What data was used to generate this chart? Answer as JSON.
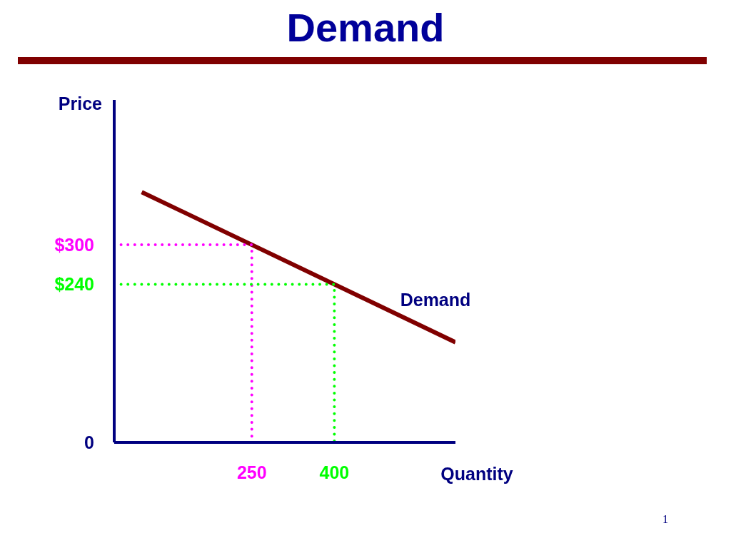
{
  "chart_data": {
    "type": "line",
    "title": "Demand",
    "xlabel": "Quantity",
    "ylabel": "Price",
    "xlim": [
      0,
      620
    ],
    "xticks": [
      250,
      400
    ],
    "ylim": [
      0,
      520
    ],
    "yticks": [
      0,
      {
        "value": 240,
        "label": "$240"
      },
      {
        "value": 300,
        "label": "$300"
      }
    ],
    "series": [
      {
        "name": "Demand",
        "color": "#800000",
        "x": [
          50,
          620
        ],
        "values": [
          380,
          152
        ]
      },
      {
        "color": "#ff00ff",
        "x": [
          0,
          250,
          250
        ],
        "values": [
          300,
          300,
          0
        ],
        "line_style": "dotted"
      },
      {
        "color": "#00ff00",
        "x": [
          0,
          400,
          400
        ],
        "values": [
          240,
          240,
          0
        ],
        "line_style": "dotted"
      }
    ],
    "annotations": [
      "1"
    ]
  }
}
